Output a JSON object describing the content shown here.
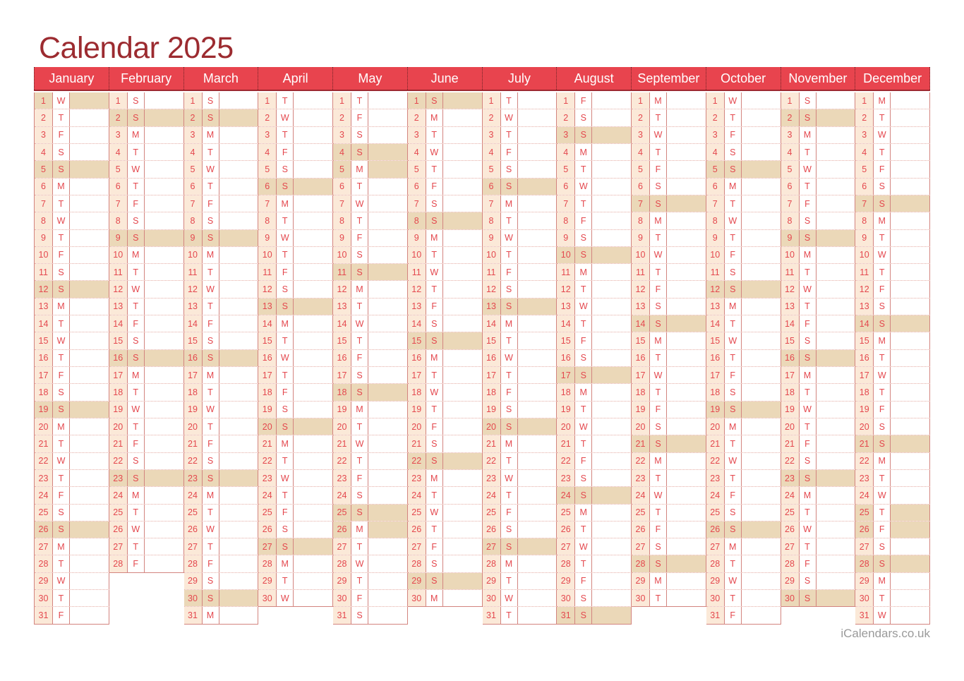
{
  "title": "Calendar 2025",
  "footer": "iCalendars.co.uk",
  "colors": {
    "header_bg": "#e8444e",
    "header_line": "#9e2830",
    "header_separator": "#6e2326",
    "title_text": "#9c2b30",
    "day_text": "#e4484e",
    "number_cell_bg": "#fbe9d8",
    "highlight_bg": "#ebd8b8",
    "grid_line": "#d3847f",
    "row_line": "#e5aca4",
    "footer_text": "#9a9a9a"
  },
  "highlight_rule": "sundays-and-listed-holidays",
  "months": [
    {
      "name": "January",
      "letters": "WTFSSMTWTFSSMTWTFSSMTWTFSSMTWTF",
      "sundays": [
        5,
        12,
        19,
        26
      ],
      "holidays": [
        1
      ]
    },
    {
      "name": "February",
      "letters": "SSMTWTFSSMTWTFSSMTWTFSSMTWTF",
      "sundays": [
        2,
        9,
        16,
        23
      ],
      "holidays": []
    },
    {
      "name": "March",
      "letters": "SSMTWTFSSMTWTFSSMTWTFSSMTWTFSSM",
      "sundays": [
        2,
        9,
        16,
        23,
        30
      ],
      "holidays": []
    },
    {
      "name": "April",
      "letters": "TWTFSSMTWTFSSMTWTFSSMTWTFSSMTW",
      "sundays": [
        6,
        13,
        20,
        27
      ],
      "holidays": []
    },
    {
      "name": "May",
      "letters": "TFSSMTWTFSSMTWTFSSMTWTFSSMTWTFS",
      "sundays": [
        4,
        11,
        18,
        25
      ],
      "holidays": [
        5,
        26
      ]
    },
    {
      "name": "June",
      "letters": "SMTWTFSSMTWTFSSMTWTFSSMTWTFSSM",
      "sundays": [
        1,
        8,
        15,
        22,
        29
      ],
      "holidays": []
    },
    {
      "name": "July",
      "letters": "TWTFSSMTWTFSSMTWTFSSMTWTFSSMTWT",
      "sundays": [
        6,
        13,
        20,
        27
      ],
      "holidays": []
    },
    {
      "name": "August",
      "letters": "FSSMTWTFSSMTWTFSSMTWTFSSMTWTFSS",
      "sundays": [
        3,
        10,
        17,
        24,
        31
      ],
      "holidays": []
    },
    {
      "name": "September",
      "letters": "MTWTFSSMTWTFSSMTWTFSSMTWTFSSMT",
      "sundays": [
        7,
        14,
        21,
        28
      ],
      "holidays": []
    },
    {
      "name": "October",
      "letters": "WTFSSMTWTFSSMTWTFSSMTWTFSSMTWTF",
      "sundays": [
        5,
        12,
        19,
        26
      ],
      "holidays": []
    },
    {
      "name": "November",
      "letters": "SSMTWTFSSMTWTFSSMTWTFSSMTWTFSS",
      "sundays": [
        2,
        9,
        16,
        23,
        30
      ],
      "holidays": []
    },
    {
      "name": "December",
      "letters": "MTWTFSSMTWTFSSMTWTFSSMTWTFSSMTW",
      "sundays": [
        7,
        14,
        21,
        28
      ],
      "holidays": [
        25,
        26
      ]
    }
  ]
}
